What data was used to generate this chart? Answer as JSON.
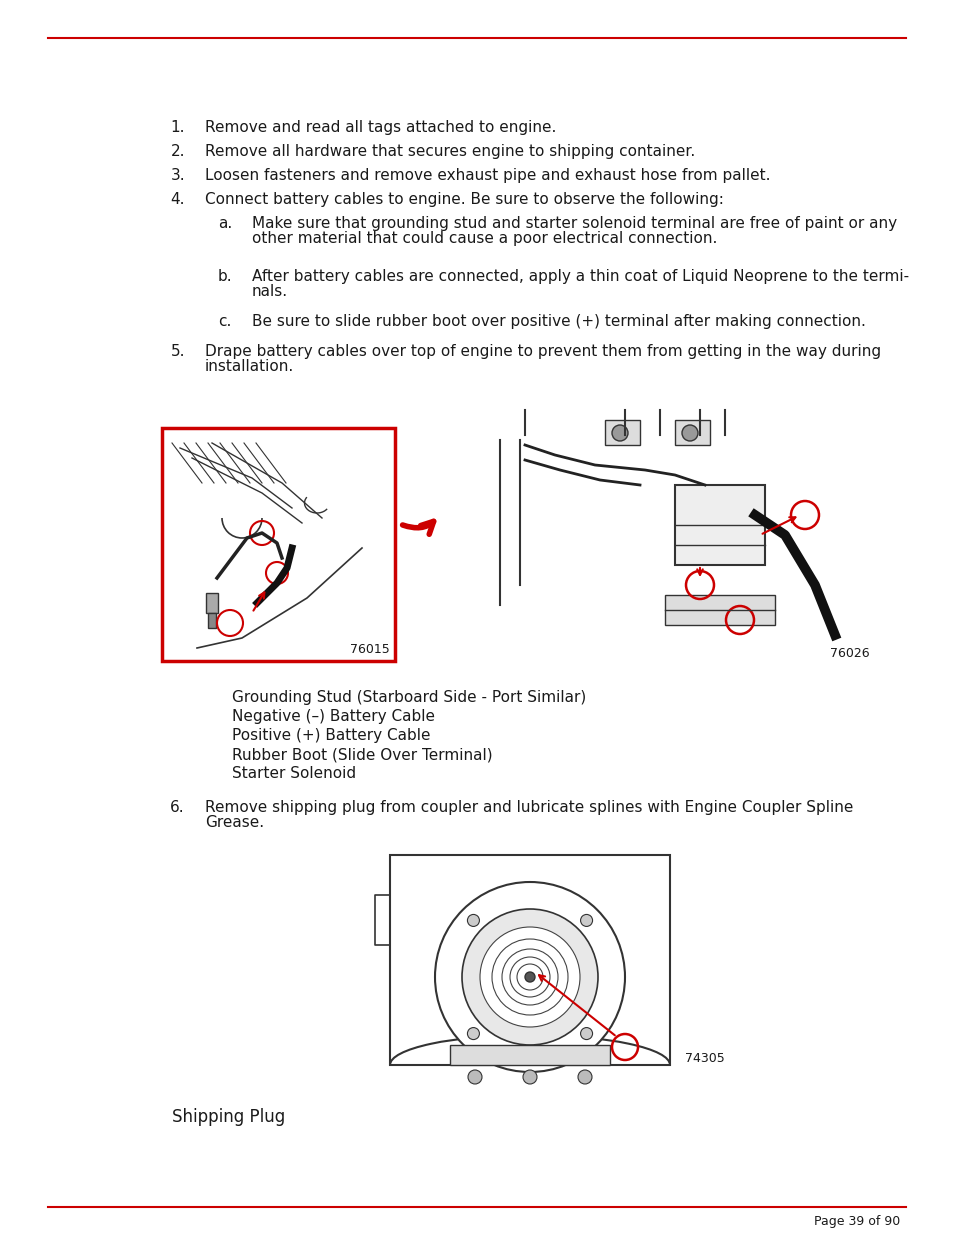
{
  "bg_color": "#ffffff",
  "text_color": "#1a1a1a",
  "red_color": "#cc0000",
  "page_number": "Page 39 of 90",
  "font_size_body": 11,
  "font_size_small": 9,
  "items": [
    {
      "num": "1.",
      "text": "Remove and read all tags attached to engine."
    },
    {
      "num": "2.",
      "text": "Remove all hardware that secures engine to shipping container."
    },
    {
      "num": "3.",
      "text": "Loosen fasteners and remove exhaust pipe and exhaust hose from pallet."
    },
    {
      "num": "4.",
      "text": "Connect battery cables to engine. Be sure to observe the following:"
    },
    {
      "num": "a.",
      "text": "Make sure that grounding stud and starter solenoid terminal are free of paint or any\nother material that could cause a poor electrical connection.",
      "sub": true
    },
    {
      "num": "b.",
      "text": "After battery cables are connected, apply a thin coat of Liquid Neoprene to the termi-\nnals.",
      "sub": true
    },
    {
      "num": "c.",
      "text": "Be sure to slide rubber boot over positive (+) terminal after making connection.",
      "sub": true
    },
    {
      "num": "5.",
      "text": "Drape battery cables over top of engine to prevent them from getting in the way during\ninstallation."
    }
  ],
  "item6_num": "6.",
  "item6_text": "Remove shipping plug from coupler and lubricate splines with Engine Coupler Spline\nGrease.",
  "legend_lines": [
    "Grounding Stud (Starboard Side - Port Similar)",
    "Negative (–) Battery Cable",
    "Positive (+) Battery Cable",
    "Rubber Boot (Slide Over Terminal)",
    "Starter Solenoid"
  ],
  "label_76015": "76015",
  "label_76026": "76026",
  "label_74305": "74305",
  "shipping_plug_label": "Shipping Plug"
}
